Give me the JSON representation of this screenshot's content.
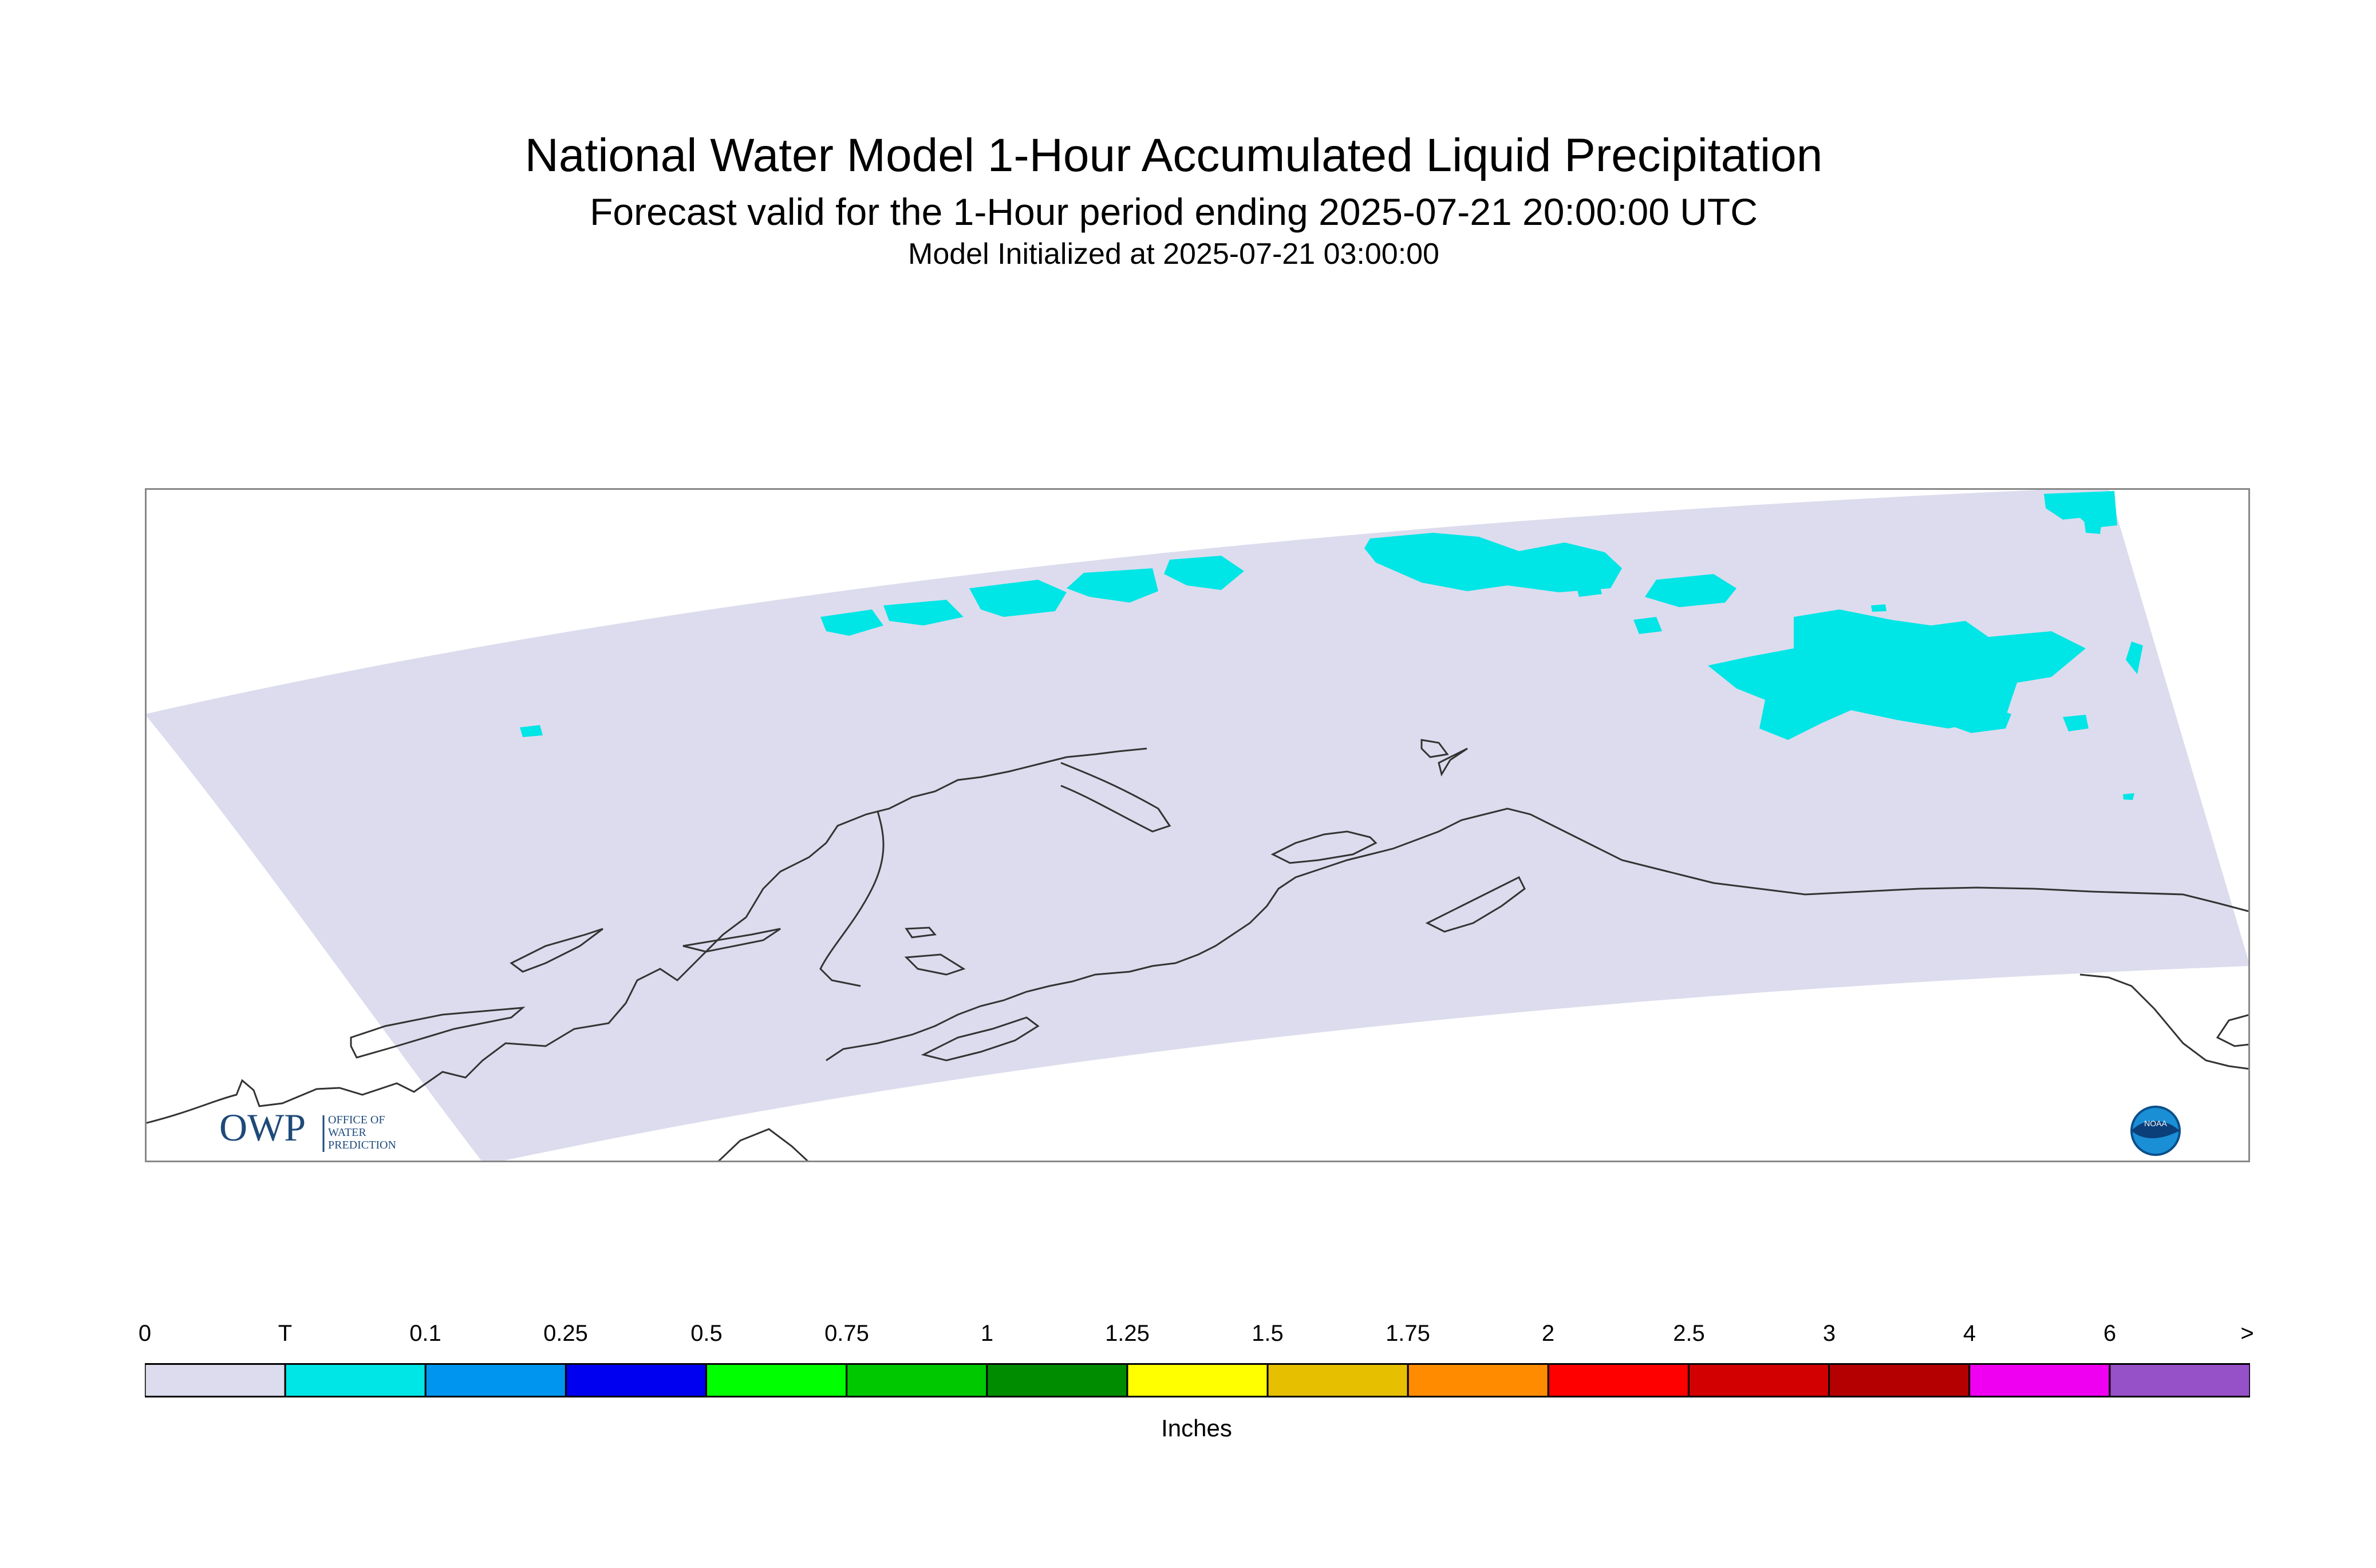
{
  "header": {
    "title": "National Water Model 1-Hour Accumulated Liquid Precipitation",
    "subtitle": "Forecast valid for the 1-Hour period ending 2025-07-21 20:00:00 UTC",
    "init": "Model Initialized at 2025-07-21 03:00:00"
  },
  "logos": {
    "owp_mark": "OWP",
    "owp_line1": "OFFICE OF",
    "owp_line2": "WATER",
    "owp_line3": "PREDICTION",
    "noaa_mark": "NOAA"
  },
  "legend": {
    "ticks": [
      "0",
      "T",
      "0.1",
      "0.25",
      "0.5",
      "0.75",
      "1",
      "1.25",
      "1.5",
      "1.75",
      "2",
      "2.5",
      "3",
      "4",
      "6",
      ">"
    ],
    "colors": [
      "#dcdcee",
      "#00e5e5",
      "#0096f0",
      "#0000f0",
      "#00ff00",
      "#00c800",
      "#008c00",
      "#ffff00",
      "#e6c000",
      "#ff8c00",
      "#ff0000",
      "#d20000",
      "#b40000",
      "#f000f0",
      "#9650c8"
    ],
    "units": "Inches"
  },
  "colors": {
    "domain_fill": "#dcdcee",
    "trace_precip": "#00e5e5",
    "coast_line": "#333333",
    "frame": "#888888"
  }
}
